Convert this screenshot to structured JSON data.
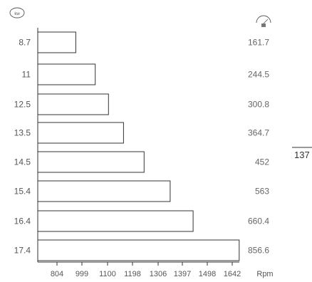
{
  "chart_data": {
    "type": "bar",
    "orientation": "horizontal",
    "categories": [
      "8.7",
      "11",
      "12.5",
      "13.5",
      "14.5",
      "15.4",
      "16.4",
      "17.4"
    ],
    "values": [
      161.7,
      244.5,
      300.8,
      364.7,
      452,
      563,
      660.4,
      856.6
    ],
    "value_labels": [
      "161.7",
      "244.5",
      "300.8",
      "364.7",
      "452",
      "563",
      "660.4",
      "856.6"
    ],
    "x_ticks": [
      "804",
      "999",
      "1100",
      "1198",
      "1306",
      "1397",
      "1498",
      "1642"
    ],
    "xlabel": "Rpm",
    "left_axis_icon": "kw-badge-icon",
    "right_column_icon": "torque-gauge-icon",
    "grid": false
  },
  "page_number": "137",
  "colors": {
    "bar_fill": "#ffffff",
    "bar_stroke": "#333333",
    "text": "#555555"
  }
}
